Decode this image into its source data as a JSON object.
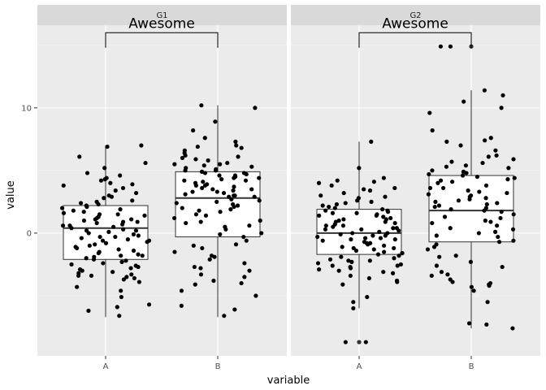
{
  "chart_data": {
    "type": "boxplot",
    "xlabel": "variable",
    "ylabel": "value",
    "y_ticks": [
      0,
      10
    ],
    "ylim": [
      -9.8,
      16.6
    ],
    "categories": [
      "A",
      "B"
    ],
    "facets": [
      {
        "name": "G1",
        "annotation": "Awesome",
        "bracket_y": 16.0,
        "groups": [
          {
            "category": "A",
            "box": {
              "min": -6.7,
              "q1": -2.1,
              "median": 0.4,
              "q3": 2.2,
              "max": 7.0
            },
            "points": [
              -6.6,
              -6.2,
              -5.9,
              -5.7,
              -5.1,
              -4.6,
              -4.3,
              -3.9,
              -3.7,
              -3.6,
              -3.5,
              -3.4,
              -3.3,
              -3.2,
              -3.1,
              -3.0,
              -2.9,
              -2.8,
              -2.7,
              -2.6,
              -2.5,
              -2.4,
              -2.2,
              -2.1,
              -2.0,
              -1.9,
              -1.8,
              -1.7,
              -1.6,
              -1.5,
              -1.4,
              -1.2,
              -1.1,
              -1.0,
              -0.9,
              -0.8,
              -0.7,
              -0.6,
              -0.5,
              -0.4,
              -0.3,
              -0.2,
              -0.1,
              0.0,
              0.1,
              0.2,
              0.3,
              0.4,
              0.5,
              0.6,
              0.7,
              0.8,
              0.9,
              1.0,
              1.1,
              1.2,
              1.3,
              1.4,
              1.5,
              1.6,
              1.7,
              1.8,
              1.9,
              2.0,
              2.1,
              2.2,
              2.3,
              2.4,
              2.6,
              2.8,
              3.0,
              3.2,
              3.4,
              3.6,
              3.8,
              4.0,
              4.2,
              4.4,
              4.6,
              4.8,
              5.2,
              5.6,
              6.1,
              6.9,
              7.0,
              -0.3,
              0.6,
              1.5,
              -1.3,
              2.5,
              3.9,
              -2.3,
              0.2,
              1.1,
              -0.6,
              4.3,
              -3.4,
              2.9,
              -1.8,
              0.9
            ]
          },
          {
            "category": "B",
            "box": {
              "min": -6.7,
              "q1": -0.3,
              "median": 2.8,
              "q3": 4.9,
              "max": 10.2
            },
            "points": [
              -6.6,
              -6.1,
              -5.8,
              -5.0,
              -4.6,
              -4.1,
              -3.8,
              -3.5,
              -3.3,
              -3.0,
              -2.7,
              -2.4,
              -2.1,
              -1.8,
              -1.5,
              -1.2,
              -0.9,
              -0.6,
              -0.3,
              0.0,
              0.3,
              0.6,
              0.9,
              1.2,
              1.5,
              1.7,
              1.9,
              2.1,
              2.3,
              2.5,
              2.7,
              2.9,
              3.0,
              3.1,
              3.2,
              3.3,
              3.4,
              3.5,
              3.6,
              3.7,
              3.8,
              3.9,
              4.0,
              4.1,
              4.2,
              4.3,
              4.4,
              4.5,
              4.6,
              4.7,
              4.8,
              4.9,
              5.0,
              5.1,
              5.2,
              5.3,
              5.4,
              5.5,
              5.6,
              5.8,
              6.0,
              6.2,
              6.4,
              6.6,
              6.8,
              7.0,
              7.3,
              7.6,
              8.2,
              8.9,
              10.0,
              10.2,
              2.0,
              3.5,
              4.8,
              1.0,
              -1.0,
              5.9,
              0.5,
              2.6,
              3.8,
              6.1,
              -2.8,
              4.2,
              1.8,
              5.5,
              2.2,
              -0.1,
              3.0,
              4.4,
              6.9,
              0.8,
              -4.0,
              2.4,
              5.0,
              3.3,
              -1.9,
              1.4,
              4.6,
              2.9
            ]
          }
        ]
      },
      {
        "name": "G2",
        "annotation": "Awesome",
        "bracket_y": 16.0,
        "groups": [
          {
            "category": "A",
            "box": {
              "min": -6.0,
              "q1": -1.7,
              "median": 0.0,
              "q3": 1.9,
              "max": 7.3
            },
            "points": [
              -8.7,
              -8.7,
              -6.0,
              -5.5,
              -5.1,
              -4.1,
              -3.9,
              -3.8,
              -3.6,
              -3.4,
              -3.2,
              -3.0,
              -2.9,
              -2.8,
              -2.7,
              -2.6,
              -2.5,
              -2.4,
              -2.3,
              -2.2,
              -2.1,
              -2.0,
              -1.9,
              -1.8,
              -1.7,
              -1.6,
              -1.5,
              -1.4,
              -1.3,
              -1.2,
              -1.1,
              -1.0,
              -0.9,
              -0.8,
              -0.7,
              -0.6,
              -0.5,
              -0.4,
              -0.3,
              -0.2,
              -0.1,
              0.0,
              0.1,
              0.2,
              0.3,
              0.4,
              0.5,
              0.6,
              0.7,
              0.8,
              0.9,
              1.0,
              1.1,
              1.2,
              1.3,
              1.4,
              1.5,
              1.6,
              1.7,
              1.8,
              1.9,
              2.0,
              2.1,
              2.2,
              2.3,
              2.4,
              2.6,
              2.8,
              3.0,
              3.2,
              3.4,
              3.6,
              3.8,
              4.0,
              4.2,
              4.4,
              5.2,
              7.3,
              -0.4,
              0.3,
              1.1,
              -1.2,
              2.5,
              -2.2,
              0.6,
              1.8,
              -0.8,
              3.5,
              -3.1,
              0.0,
              1.4,
              -1.6,
              2.9,
              -0.2,
              0.9,
              -2.6,
              4.1,
              0.4,
              -0.5,
              1.6
            ]
          },
          {
            "category": "B",
            "box": {
              "min": -7.6,
              "q1": -0.7,
              "median": 1.8,
              "q3": 4.6,
              "max": 11.4
            },
            "points": [
              -7.6,
              -7.3,
              -7.2,
              -5.5,
              -4.6,
              -4.3,
              -4.1,
              -4.0,
              -3.9,
              -3.7,
              -3.4,
              -3.1,
              -2.7,
              -2.3,
              -1.8,
              -1.3,
              -0.9,
              -0.6,
              -0.3,
              0.0,
              0.3,
              0.6,
              0.9,
              1.2,
              1.5,
              1.8,
              2.0,
              2.2,
              2.4,
              2.6,
              2.8,
              3.0,
              3.2,
              3.4,
              3.6,
              3.8,
              4.0,
              4.2,
              4.4,
              4.6,
              4.8,
              5.0,
              5.2,
              5.4,
              5.6,
              5.9,
              6.2,
              6.6,
              7.0,
              7.3,
              7.6,
              8.2,
              9.6,
              10.0,
              10.5,
              11.0,
              11.4,
              14.9,
              14.9,
              2.1,
              3.3,
              4.5,
              1.0,
              -1.1,
              5.7,
              0.4,
              2.5,
              3.6,
              -2.6,
              4.1,
              1.7,
              -0.2,
              2.9,
              4.3,
              0.8,
              -4.2,
              2.3,
              4.9,
              3.1,
              -1.9,
              1.3,
              6.1,
              -0.7,
              7.4,
              5.3,
              2.7,
              -3.3,
              0.1,
              4.7,
              1.9
            ]
          }
        ]
      }
    ]
  }
}
